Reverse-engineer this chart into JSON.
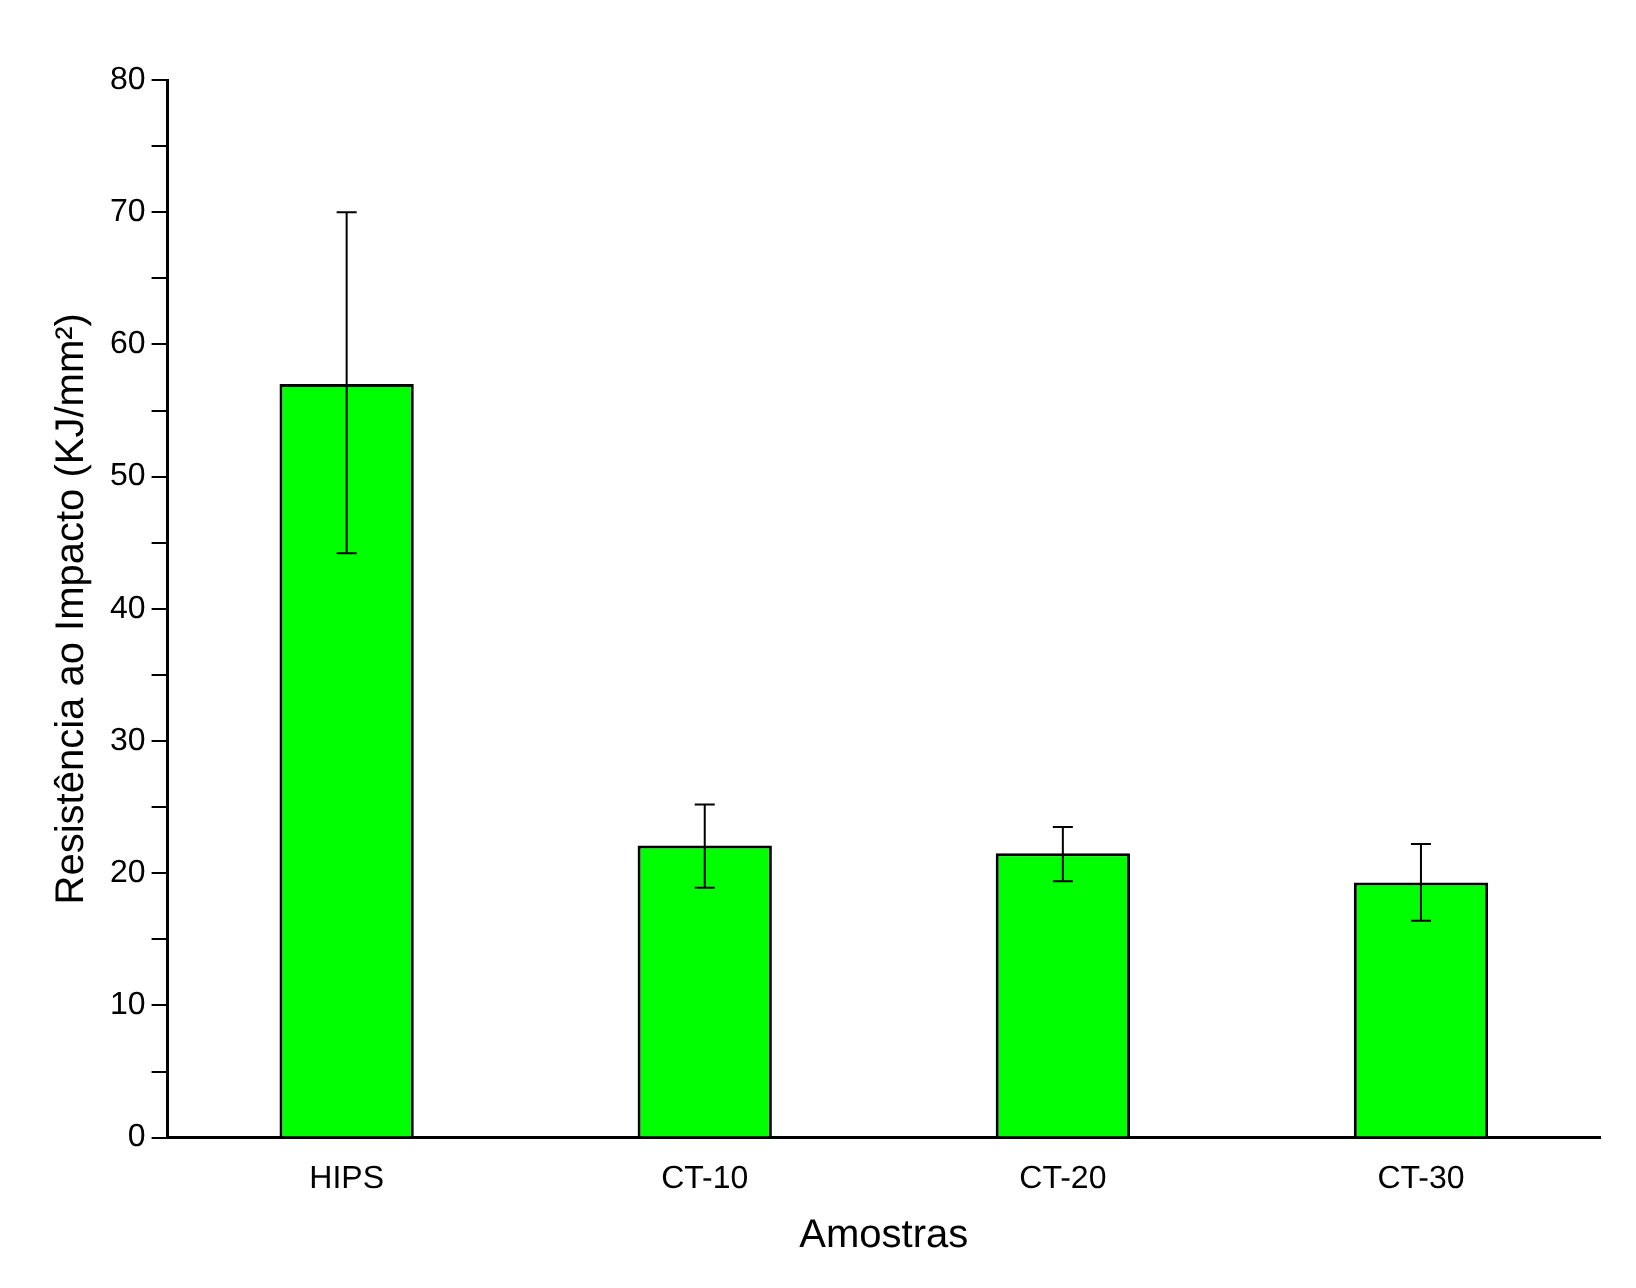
{
  "chart_data": {
    "type": "bar",
    "xlabel": "Amostras",
    "ylabel": "Resistência ao Impacto (KJ/mm²)",
    "categories": [
      "HIPS",
      "CT-10",
      "CT-20",
      "CT-30"
    ],
    "values": [
      57,
      22.1,
      21.5,
      19.3
    ],
    "errors": [
      [
        44.2,
        70
      ],
      [
        18.9,
        25.2
      ],
      [
        19.4,
        23.5
      ],
      [
        16.4,
        22.2
      ]
    ],
    "color": "#00ff00",
    "ylim": [
      0,
      80
    ],
    "yticks": [
      0,
      {
        "value": 5,
        "label": null
      },
      10,
      {
        "value": 15,
        "label": null
      },
      20,
      {
        "value": 25,
        "label": null
      },
      30,
      {
        "value": 35,
        "label": null
      },
      40,
      {
        "value": 45,
        "label": null
      },
      50,
      {
        "value": 55,
        "label": null
      },
      60,
      {
        "value": 65,
        "label": null
      },
      70,
      {
        "value": 75,
        "label": null
      },
      80
    ],
    "grid": false,
    "legend": false
  }
}
